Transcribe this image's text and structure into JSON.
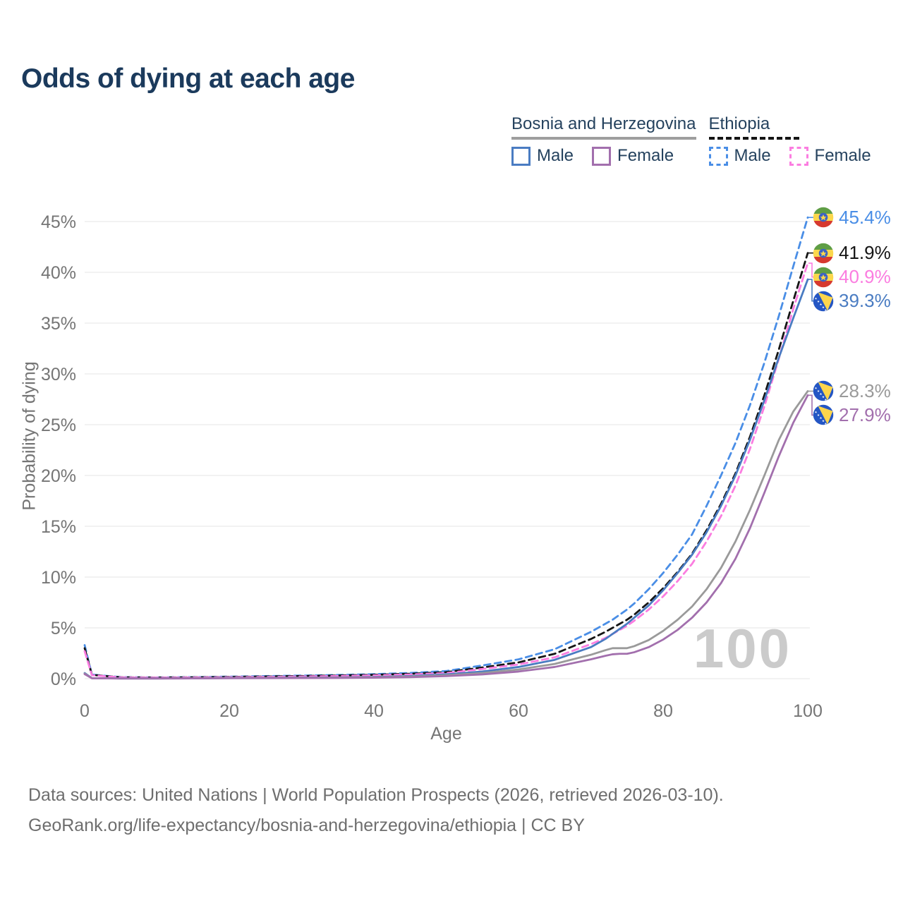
{
  "title": "Odds of dying at each age",
  "legend": {
    "groups": [
      {
        "name": "Bosnia and Herzegovina",
        "line_style": "solid",
        "line_color": "#9e9e9e",
        "items": [
          {
            "label": "Male",
            "color": "#4a7cc2",
            "dash": false
          },
          {
            "label": "Female",
            "color": "#a26fad",
            "dash": false
          }
        ]
      },
      {
        "name": "Ethiopia",
        "line_style": "dashed",
        "line_color": "#151515",
        "items": [
          {
            "label": "Male",
            "color": "#4a8ee6",
            "dash": true
          },
          {
            "label": "Female",
            "color": "#fb7de0",
            "dash": true
          }
        ]
      }
    ]
  },
  "chart_data": {
    "type": "line",
    "title": "Odds of dying at each age",
    "xlabel": "Age",
    "ylabel": "Probability of dying",
    "xlim": [
      0,
      100
    ],
    "ylim_pct": [
      0,
      47
    ],
    "x_ticks": [
      0,
      20,
      40,
      60,
      80,
      100
    ],
    "y_ticks": [
      0,
      5,
      10,
      15,
      20,
      25,
      30,
      35,
      40,
      45
    ],
    "grid": "horizontal",
    "legend_position": "top-right",
    "watermark": "100",
    "ages": [
      0,
      1,
      5,
      10,
      15,
      20,
      25,
      30,
      35,
      40,
      45,
      50,
      55,
      60,
      65,
      70,
      72,
      73,
      74,
      75,
      76,
      78,
      80,
      82,
      84,
      86,
      88,
      90,
      92,
      94,
      96,
      98,
      100
    ],
    "series": [
      {
        "name": "Ethiopia Male",
        "country": "Ethiopia",
        "sex": "Male",
        "color": "#4a8ee6",
        "dash": true,
        "flag": "et",
        "end_label": "45.4%",
        "end_value_pct": 45.4,
        "values": [
          3.3,
          0.4,
          0.15,
          0.12,
          0.15,
          0.2,
          0.25,
          0.3,
          0.36,
          0.44,
          0.56,
          0.75,
          1.3,
          1.9,
          2.9,
          4.6,
          5.4,
          5.8,
          6.3,
          6.8,
          7.4,
          8.8,
          10.4,
          12.2,
          14.2,
          17.0,
          20.0,
          23.2,
          26.9,
          31.1,
          35.7,
          40.6,
          45.4
        ]
      },
      {
        "name": "Ethiopia Both sexes",
        "country": "Ethiopia",
        "sex": "Both",
        "color": "#151515",
        "dash": true,
        "flag": "et",
        "end_label": "41.9%",
        "end_value_pct": 41.9,
        "values": [
          3.0,
          0.37,
          0.13,
          0.11,
          0.13,
          0.17,
          0.21,
          0.26,
          0.31,
          0.38,
          0.48,
          0.64,
          1.1,
          1.6,
          2.45,
          3.9,
          4.6,
          5.0,
          5.4,
          5.8,
          6.3,
          7.5,
          8.9,
          10.5,
          12.3,
          14.6,
          17.2,
          20.2,
          23.8,
          27.9,
          32.4,
          37.2,
          41.9
        ]
      },
      {
        "name": "Ethiopia Female",
        "country": "Ethiopia",
        "sex": "Female",
        "color": "#fb7de0",
        "dash": true,
        "flag": "et",
        "end_label": "40.9%",
        "end_value_pct": 40.9,
        "values": [
          2.7,
          0.34,
          0.12,
          0.1,
          0.11,
          0.14,
          0.17,
          0.21,
          0.26,
          0.32,
          0.41,
          0.55,
          0.95,
          1.4,
          2.1,
          3.4,
          4.0,
          4.4,
          4.8,
          5.2,
          5.7,
          6.8,
          8.1,
          9.6,
          11.3,
          13.5,
          16.0,
          19.0,
          22.6,
          26.8,
          31.5,
          36.4,
          40.9
        ]
      },
      {
        "name": "Bosnia and Herzegovina Male",
        "country": "Bosnia and Herzegovina",
        "sex": "Male",
        "color": "#4a7cc2",
        "dash": false,
        "flag": "ba",
        "end_label": "39.3%",
        "end_value_pct": 39.3,
        "values": [
          0.55,
          0.05,
          0.02,
          0.02,
          0.04,
          0.07,
          0.08,
          0.1,
          0.12,
          0.16,
          0.25,
          0.42,
          0.7,
          1.15,
          1.85,
          3.1,
          3.9,
          4.4,
          4.9,
          5.4,
          6.0,
          7.2,
          8.7,
          10.4,
          12.2,
          14.4,
          17.0,
          20.0,
          23.5,
          27.4,
          31.6,
          35.5,
          39.3
        ]
      },
      {
        "name": "Bosnia and Herzegovina Both sexes",
        "country": "Bosnia and Herzegovina",
        "sex": "Both",
        "color": "#9a9a9a",
        "dash": false,
        "flag": "ba",
        "end_label": "28.3%",
        "end_value_pct": 28.3,
        "values": [
          0.5,
          0.045,
          0.018,
          0.018,
          0.035,
          0.06,
          0.07,
          0.085,
          0.1,
          0.13,
          0.2,
          0.33,
          0.55,
          0.9,
          1.45,
          2.35,
          2.8,
          3.0,
          3.0,
          3.0,
          3.2,
          3.8,
          4.7,
          5.8,
          7.1,
          8.8,
          10.9,
          13.5,
          16.6,
          20.0,
          23.5,
          26.3,
          28.3
        ]
      },
      {
        "name": "Bosnia and Herzegovina Female",
        "country": "Bosnia and Herzegovina",
        "sex": "Female",
        "color": "#a26fad",
        "dash": false,
        "flag": "ba",
        "end_label": "27.9%",
        "end_value_pct": 27.9,
        "values": [
          0.45,
          0.04,
          0.015,
          0.015,
          0.025,
          0.045,
          0.05,
          0.06,
          0.075,
          0.1,
          0.15,
          0.25,
          0.42,
          0.7,
          1.15,
          1.9,
          2.25,
          2.4,
          2.45,
          2.45,
          2.6,
          3.1,
          3.85,
          4.8,
          6.0,
          7.5,
          9.4,
          11.8,
          14.8,
          18.3,
          21.9,
          25.2,
          27.9
        ]
      }
    ]
  },
  "colors": {
    "title_text": "#1b3a5c",
    "legend_text": "#25425e",
    "axis_text": "#757575",
    "gridline": "#ebebeb",
    "watermark": "#cbcbcb",
    "footer_text": "#6e6e6e"
  },
  "footer": {
    "line1": "Data sources: United Nations | World Population Prospects (2026, retrieved 2026-03-10).",
    "line2": "GeoRank.org/life-expectancy/bosnia-and-herzegovina/ethiopia | CC BY"
  }
}
